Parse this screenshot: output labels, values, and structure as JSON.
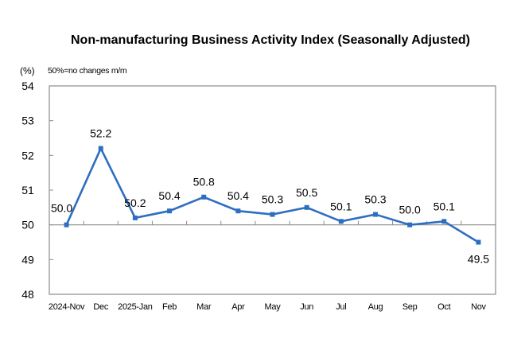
{
  "chart_data": {
    "type": "line",
    "title": "Non-manufacturing Business Activity Index (Seasonally Adjusted)",
    "unit_label": "(%)",
    "note": "50%=no changes m/m",
    "xlabel": "",
    "ylabel": "",
    "categories": [
      "2024-Nov",
      "Dec",
      "2025-Jan",
      "Feb",
      "Mar",
      "Apr",
      "May",
      "Jun",
      "Jul",
      "Aug",
      "Sep",
      "Oct",
      "Nov"
    ],
    "series": [
      {
        "name": "Non-manufacturing Business Activity Index",
        "values": [
          50.0,
          52.2,
          50.2,
          50.4,
          50.8,
          50.4,
          50.3,
          50.5,
          50.1,
          50.3,
          50.0,
          50.1,
          49.5
        ],
        "labels": [
          "50.0",
          "52.2",
          "50.2",
          "50.4",
          "50.8",
          "50.4",
          "50.3",
          "50.5",
          "50.1",
          "50.3",
          "50.0",
          "50.1",
          "49.5"
        ],
        "color": "#2E6EC0"
      }
    ],
    "ylim": [
      48,
      54
    ],
    "yticks": [
      48,
      49,
      50,
      51,
      52,
      53,
      54
    ],
    "reference_line": 50,
    "grid": false,
    "legend": "none"
  }
}
